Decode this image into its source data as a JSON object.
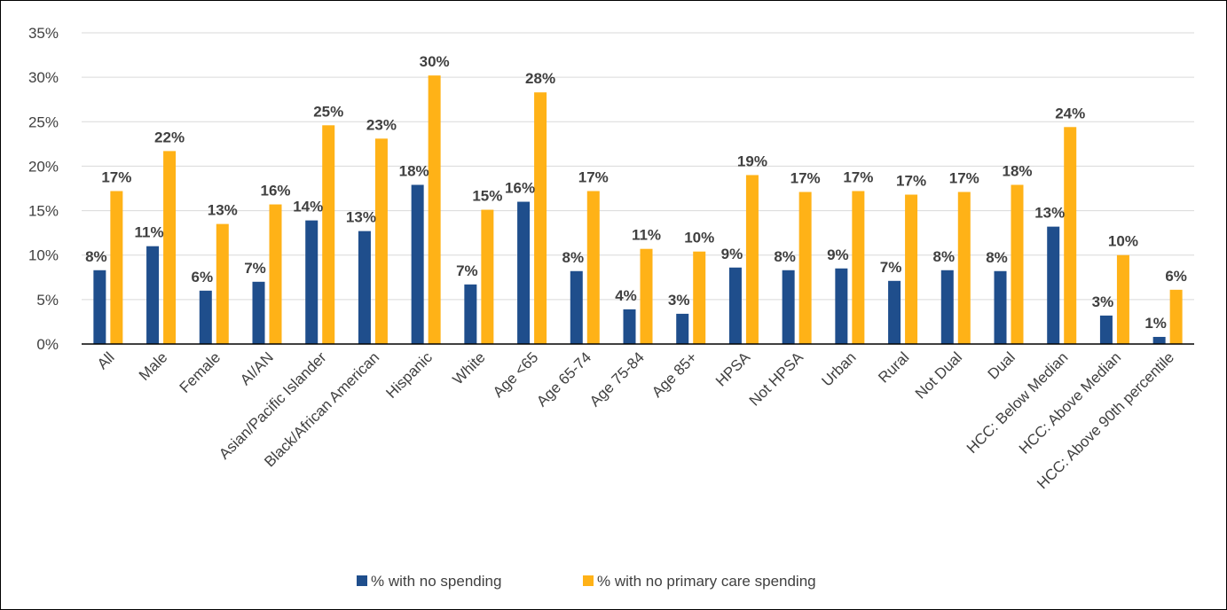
{
  "chart_data": {
    "type": "bar",
    "categories": [
      "All",
      "Male",
      "Female",
      "AI/AN",
      "Asian/Pacific Islander",
      "Black/African American",
      "Hispanic",
      "White",
      "Age <65",
      "Age 65-74",
      "Age 75-84",
      "Age 85+",
      "HPSA",
      "Not HPSA",
      "Urban",
      "Rural",
      "Not Dual",
      "Dual",
      "HCC: Below Median",
      "HCC: Above Median",
      "HCC: Above 90th percentile"
    ],
    "series": [
      {
        "name": "% with no spending",
        "color": "#1F4E8C",
        "values": [
          8.3,
          11.0,
          6.0,
          7.0,
          13.9,
          12.7,
          17.9,
          6.7,
          16.0,
          8.2,
          3.9,
          3.4,
          8.6,
          8.3,
          8.5,
          7.1,
          8.3,
          8.2,
          13.2,
          3.2,
          0.8
        ],
        "labels": [
          "8%",
          "11%",
          "6%",
          "7%",
          "14%",
          "13%",
          "18%",
          "7%",
          "16%",
          "8%",
          "4%",
          "3%",
          "9%",
          "8%",
          "9%",
          "7%",
          "8%",
          "8%",
          "13%",
          "3%",
          "1%"
        ]
      },
      {
        "name": "% with no primary care spending",
        "color": "#FFB217",
        "values": [
          17.2,
          21.7,
          13.5,
          15.7,
          24.6,
          23.1,
          30.2,
          15.1,
          28.3,
          17.2,
          10.7,
          10.4,
          19.0,
          17.1,
          17.2,
          16.8,
          17.1,
          17.9,
          24.4,
          10.0,
          6.1
        ],
        "labels": [
          "17%",
          "22%",
          "13%",
          "16%",
          "25%",
          "23%",
          "30%",
          "15%",
          "28%",
          "17%",
          "11%",
          "10%",
          "19%",
          "17%",
          "17%",
          "17%",
          "17%",
          "18%",
          "24%",
          "10%",
          "6%"
        ]
      }
    ],
    "ylim": [
      0,
      35
    ],
    "yticks": [
      "0%",
      "5%",
      "10%",
      "15%",
      "20%",
      "25%",
      "30%",
      "35%"
    ],
    "ytick_values": [
      0,
      5,
      10,
      15,
      20,
      25,
      30,
      35
    ],
    "grid": true,
    "legend_position": "bottom"
  }
}
